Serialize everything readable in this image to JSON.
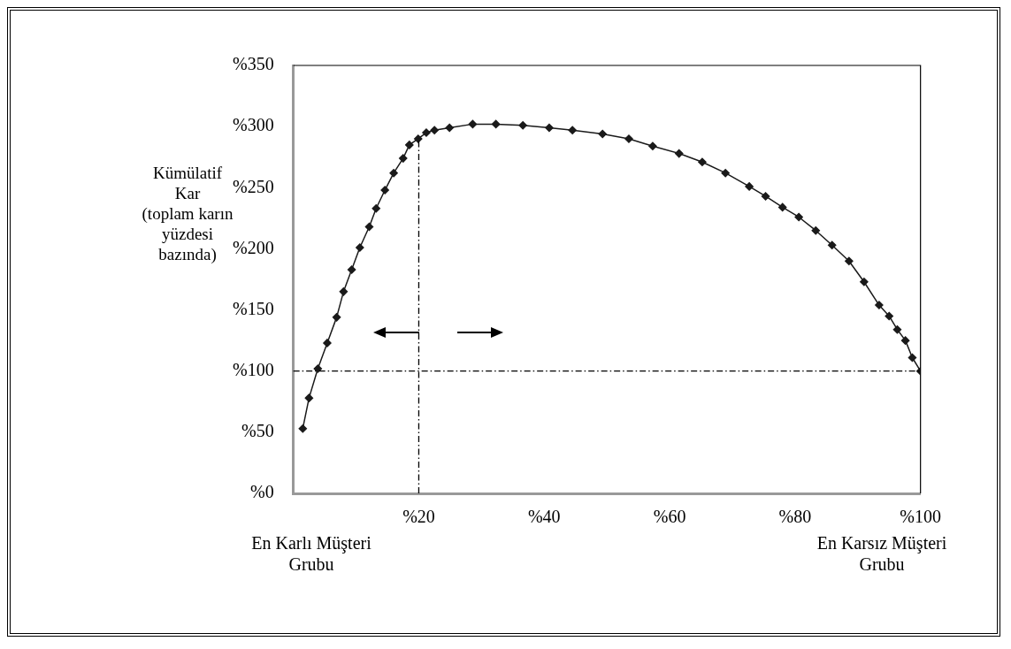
{
  "chart_data": {
    "type": "line",
    "ylabel": "Kümülatif\nKar\n(toplam karın\nyüzdesi\nbazında)",
    "annotations": [
      "En Karlı Müşteri Grubu",
      "En Karsız Müşteri Grubu"
    ],
    "series": [
      {
        "color": "#1a1a1a",
        "x": [
          1.5,
          2.5,
          3.9,
          5.4,
          6.9,
          8.0,
          9.3,
          10.6,
          12.1,
          13.2,
          14.6,
          16.0,
          17.5,
          18.5,
          19.9,
          21.2,
          22.5,
          24.9,
          28.6,
          32.3,
          36.6,
          40.8,
          44.5,
          49.3,
          53.5,
          57.3,
          61.5,
          65.2,
          68.9,
          72.7,
          75.3,
          78.0,
          80.6,
          83.3,
          85.9,
          88.6,
          91.0,
          93.4,
          95.0,
          96.3,
          97.6,
          98.7,
          100
        ],
        "values": [
          53,
          78,
          102,
          123,
          144,
          165,
          183,
          201,
          218,
          233,
          248,
          262,
          274,
          285,
          290,
          295,
          297,
          299,
          302,
          302,
          301,
          299,
          297,
          294,
          290,
          284,
          278,
          271,
          262,
          251,
          243,
          234,
          226,
          215,
          203,
          190,
          173,
          154,
          145,
          134,
          125,
          111,
          100
        ]
      }
    ],
    "marker": "diamond",
    "xlim": [
      0,
      100
    ],
    "xticks": [
      {
        "value": 20,
        "label": "%20"
      },
      {
        "value": 40,
        "label": "%40"
      },
      {
        "value": 60,
        "label": "%60"
      },
      {
        "value": 80,
        "label": "%80"
      },
      {
        "value": 100,
        "label": "%100"
      }
    ],
    "ylim": [
      0,
      350
    ],
    "yticks": [
      {
        "value": 0,
        "label": "%0"
      },
      {
        "value": 50,
        "label": "%50"
      },
      {
        "value": 100,
        "label": "%100"
      },
      {
        "value": 150,
        "label": "%150"
      },
      {
        "value": 200,
        "label": "%200"
      },
      {
        "value": 250,
        "label": "%250"
      },
      {
        "value": 300,
        "label": "%300"
      },
      {
        "value": 350,
        "label": "%350"
      }
    ],
    "ref_lines": [
      {
        "axis": "y",
        "value": 100,
        "line_style": "dashed",
        "color": "#000000"
      },
      {
        "axis": "x",
        "value": 20,
        "line_style": "dashed",
        "color": "#000000"
      }
    ],
    "grid": false,
    "legend": false
  }
}
